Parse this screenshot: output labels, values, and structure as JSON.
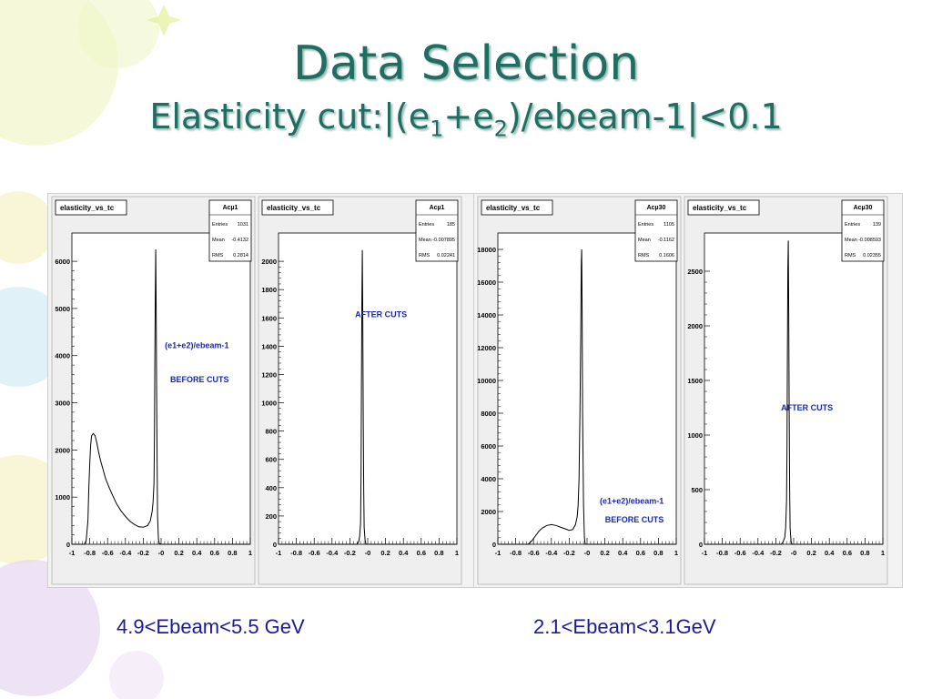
{
  "slide": {
    "title": "Data Selection",
    "subtitle_parts": [
      "Elasticity cut:|(e",
      "1",
      "+e",
      "2",
      ")/ebeam-1|<0.1"
    ],
    "captions": [
      "4.9<Ebeam<5.5 GeV",
      "2.1<Ebeam<3.1GeV"
    ]
  },
  "colors": {
    "title": "#1f6e63",
    "caption": "#1a1a9a",
    "annotation": "#1a2aa8",
    "histogram": "#000000"
  },
  "chart_data": [
    {
      "type": "line",
      "group": "4.9<Ebeam<5.5 GeV",
      "title": "elasticity_vs_tc",
      "stats": {
        "name": "Acµ1",
        "Entries": "1031",
        "Mean": "-0.4132",
        "RMS": "0.2814"
      },
      "annotations": [
        "(e1+e2)/ebeam-1",
        "BEFORE CUTS"
      ],
      "xlim": [
        -1,
        1
      ],
      "ylim": [
        0,
        6600
      ],
      "xticks": [
        "-1",
        "-0.8",
        "-0.6",
        "-0.4",
        "-0.2",
        "-0",
        "0.2",
        "0.4",
        "0.6",
        "0.8",
        "1"
      ],
      "yticks": [
        0,
        1000,
        2000,
        3000,
        4000,
        5000,
        6000
      ],
      "x": [
        -1,
        -0.9,
        -0.86,
        -0.84,
        -0.82,
        -0.81,
        -0.8,
        -0.79,
        -0.78,
        -0.76,
        -0.74,
        -0.72,
        -0.7,
        -0.68,
        -0.65,
        -0.62,
        -0.58,
        -0.54,
        -0.5,
        -0.45,
        -0.4,
        -0.35,
        -0.3,
        -0.25,
        -0.2,
        -0.15,
        -0.12,
        -0.1,
        -0.09,
        -0.08,
        -0.075,
        -0.07,
        -0.065,
        -0.06,
        -0.055,
        -0.05,
        -0.045,
        -0.04,
        -0.03,
        -0.02,
        0,
        0.1,
        1
      ],
      "y": [
        0,
        0,
        0,
        80,
        500,
        1200,
        1700,
        2100,
        2300,
        2350,
        2300,
        2150,
        1950,
        1780,
        1580,
        1380,
        1190,
        1020,
        860,
        710,
        590,
        490,
        420,
        370,
        360,
        400,
        500,
        700,
        900,
        1300,
        2300,
        3800,
        5200,
        6250,
        5000,
        3200,
        1800,
        600,
        100,
        20,
        0,
        0,
        0
      ]
    },
    {
      "type": "line",
      "group": "4.9<Ebeam<5.5 GeV",
      "title": "elasticity_vs_tc",
      "stats": {
        "name": "Acµ1",
        "Entries": "185",
        "Mean": "-0.007895",
        "RMS": "0.02241"
      },
      "annotations": [
        "AFTER CUTS"
      ],
      "xlim": [
        -1,
        1
      ],
      "ylim": [
        0,
        2200
      ],
      "xticks": [
        "-1",
        "-0.8",
        "-0.6",
        "-0.4",
        "-0.2",
        "-0",
        "0.2",
        "0.4",
        "0.6",
        "0.8",
        "1"
      ],
      "yticks": [
        0,
        200,
        400,
        600,
        800,
        1000,
        1200,
        1400,
        1600,
        1800,
        2000
      ],
      "x": [
        -1,
        -0.12,
        -0.1,
        -0.09,
        -0.08,
        -0.075,
        -0.07,
        -0.065,
        -0.06,
        -0.055,
        -0.05,
        -0.045,
        -0.04,
        -0.03,
        -0.02,
        1
      ],
      "y": [
        0,
        0,
        20,
        60,
        150,
        500,
        1100,
        1700,
        2080,
        1600,
        900,
        400,
        120,
        30,
        0,
        0
      ]
    },
    {
      "type": "line",
      "group": "2.1<Ebeam<3.1GeV",
      "title": "elasticity_vs_tc",
      "stats": {
        "name": "Acµ30",
        "Entries": "1105",
        "Mean": "-0.1162",
        "RMS": "0.1606"
      },
      "annotations": [
        "(e1+e2)/ebeam-1",
        "BEFORE CUTS"
      ],
      "xlim": [
        -1,
        1
      ],
      "ylim": [
        0,
        19000
      ],
      "xticks": [
        "-1",
        "-0.8",
        "-0.6",
        "-0.4",
        "-0.2",
        "-0",
        "0.2",
        "0.4",
        "0.6",
        "0.8",
        "1"
      ],
      "yticks": [
        0,
        2000,
        4000,
        6000,
        8000,
        10000,
        12000,
        14000,
        16000,
        18000
      ],
      "x": [
        -1,
        -0.66,
        -0.62,
        -0.58,
        -0.54,
        -0.5,
        -0.45,
        -0.4,
        -0.35,
        -0.3,
        -0.25,
        -0.2,
        -0.16,
        -0.13,
        -0.11,
        -0.1,
        -0.09,
        -0.08,
        -0.07,
        -0.065,
        -0.06,
        -0.055,
        -0.05,
        -0.04,
        -0.03,
        -0.02,
        1
      ],
      "y": [
        0,
        0,
        200,
        500,
        800,
        1000,
        1150,
        1200,
        1150,
        1050,
        950,
        850,
        900,
        1200,
        1700,
        2400,
        4000,
        8000,
        13000,
        17000,
        18000,
        14000,
        8000,
        2500,
        400,
        0,
        0
      ]
    },
    {
      "type": "line",
      "group": "2.1<Ebeam<3.1GeV",
      "title": "elasticity_vs_tc",
      "stats": {
        "name": "Acµ30",
        "Entries": "139",
        "Mean": "-0.008593",
        "RMS": "0.02355"
      },
      "annotations": [
        "AFTER CUTS"
      ],
      "xlim": [
        -1,
        1
      ],
      "ylim": [
        0,
        2850
      ],
      "xticks": [
        "-1",
        "-0.8",
        "-0.6",
        "-0.4",
        "-0.2",
        "-0",
        "0.2",
        "0.4",
        "0.6",
        "0.8",
        "1"
      ],
      "yticks": [
        0,
        500,
        1000,
        1500,
        2000,
        2500
      ],
      "x": [
        -1,
        -0.14,
        -0.12,
        -0.1,
        -0.09,
        -0.08,
        -0.075,
        -0.07,
        -0.065,
        -0.06,
        -0.055,
        -0.05,
        -0.045,
        -0.04,
        -0.03,
        -0.02,
        1
      ],
      "y": [
        0,
        0,
        20,
        60,
        150,
        400,
        900,
        1700,
        2500,
        2780,
        2100,
        1200,
        500,
        150,
        30,
        0,
        0
      ]
    }
  ]
}
